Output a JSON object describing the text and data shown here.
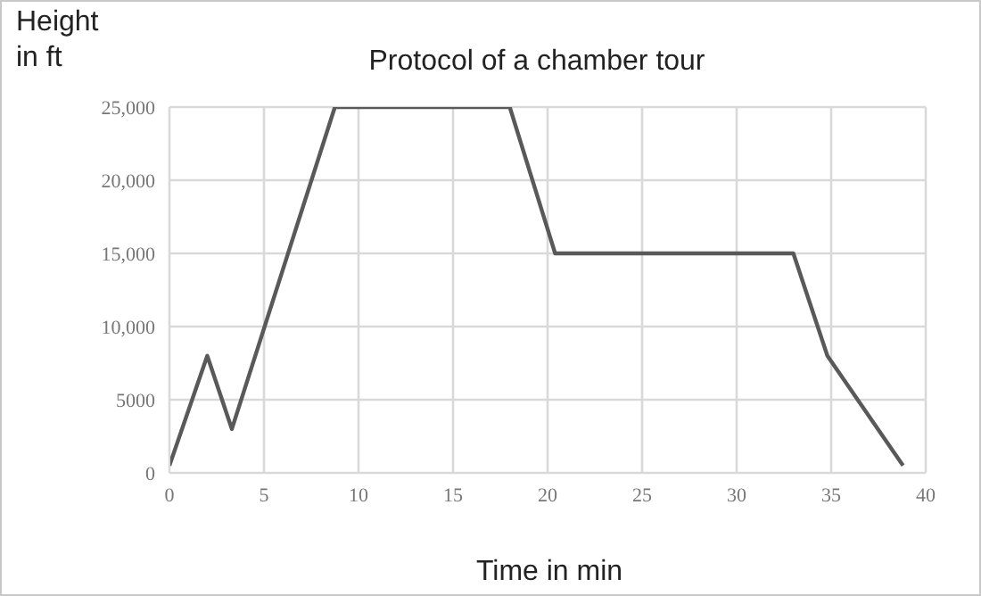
{
  "chart_data": {
    "type": "line",
    "title": "Protocol of a chamber tour",
    "xlabel": "Time in min",
    "ylabel": "Height\nin ft",
    "x": [
      0,
      2,
      3.3,
      8.75,
      18,
      20.4,
      33,
      34.8,
      38.8
    ],
    "series": [
      {
        "color": "#595959",
        "values": [
          500,
          8000,
          3000,
          25000,
          25000,
          15000,
          15000,
          8000,
          500
        ]
      }
    ],
    "xlim": [
      0,
      40
    ],
    "xticks": [
      0,
      5,
      10,
      15,
      20,
      25,
      30,
      35,
      40
    ],
    "ylim": [
      0,
      25000
    ],
    "yticks": [
      0,
      5000,
      {
        "value": 10000,
        "label": "10,000"
      },
      {
        "value": 15000,
        "label": "15,000"
      },
      {
        "value": 20000,
        "label": "20,000"
      },
      {
        "value": 25000,
        "label": "25,000"
      }
    ],
    "grid": true,
    "legend": false,
    "marker": "none",
    "line_style": "solid"
  }
}
